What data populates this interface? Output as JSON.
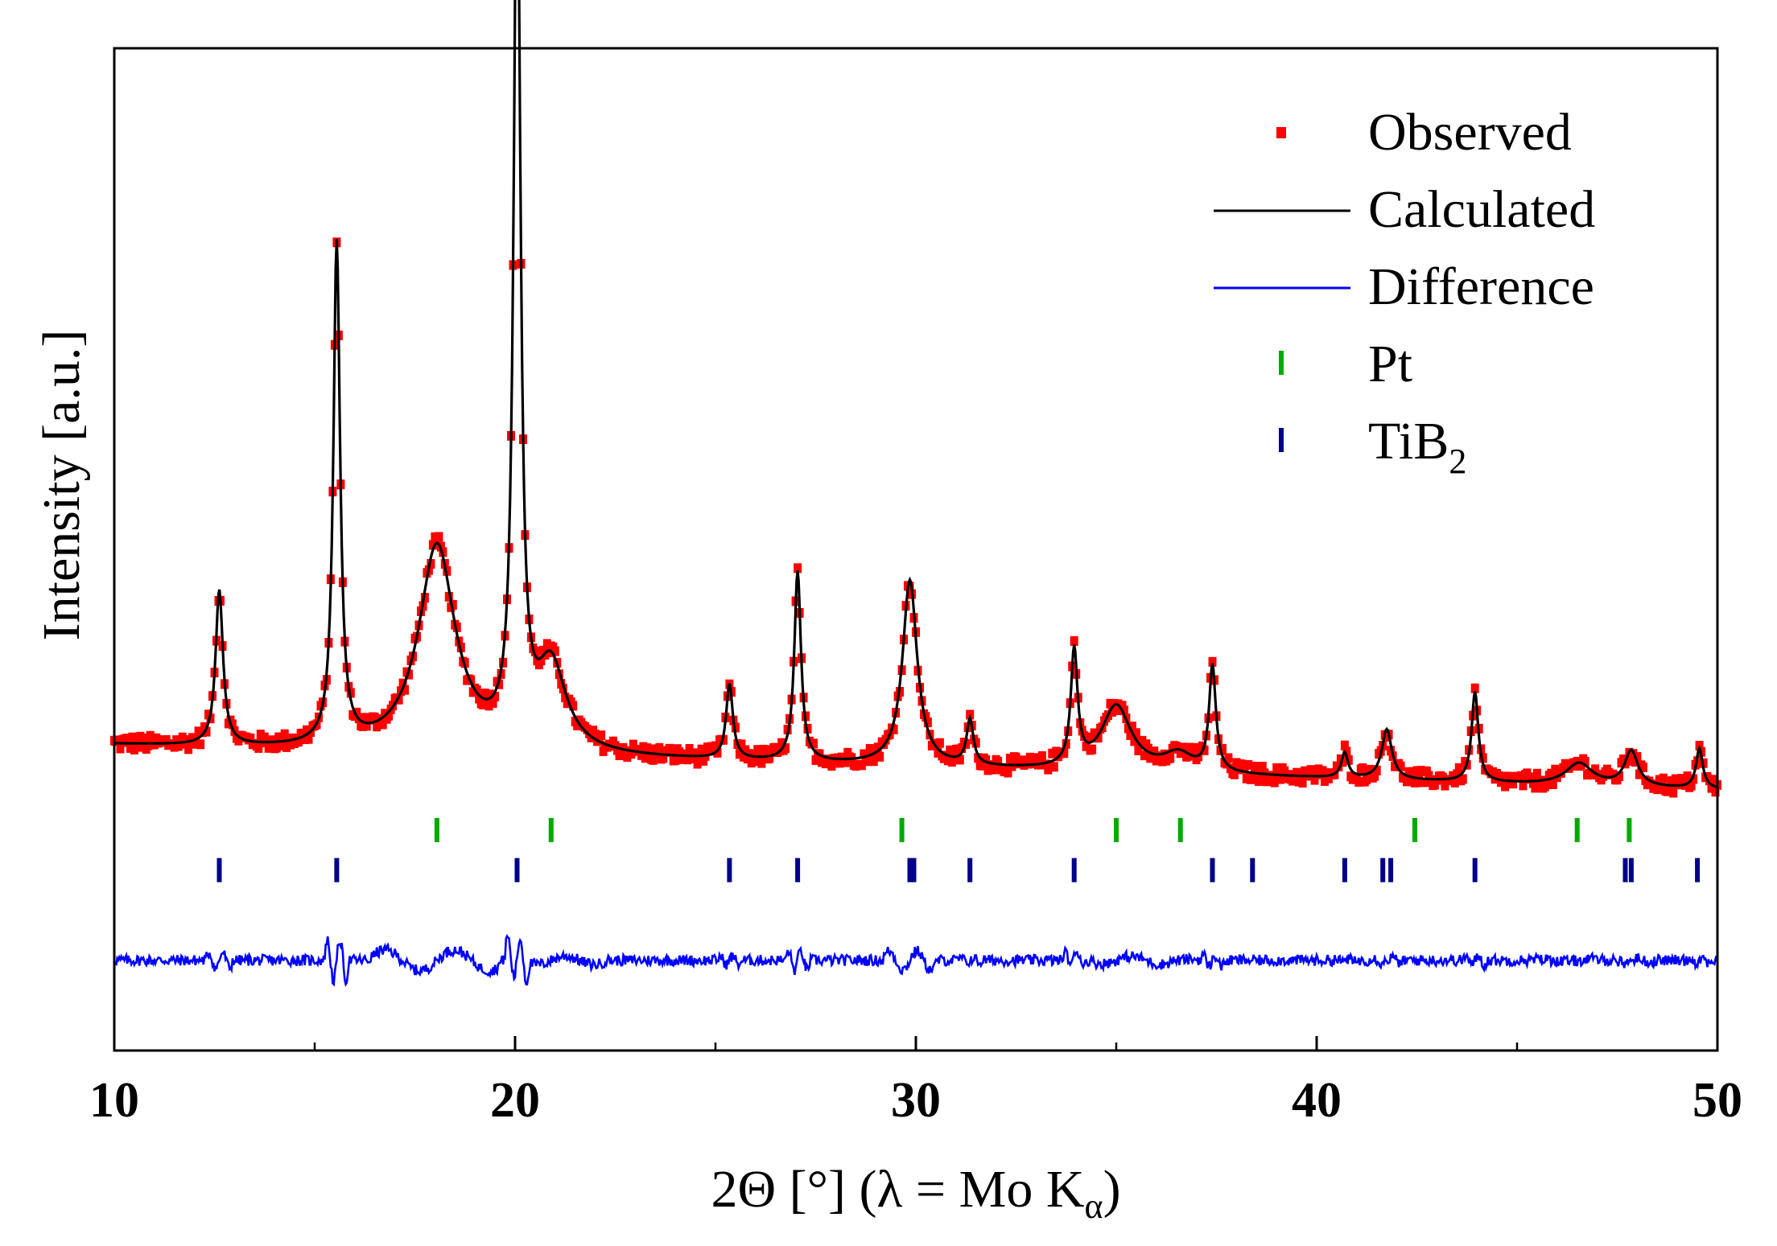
{
  "chart_data": {
    "type": "line",
    "title": "",
    "xlabel": "2Θ [°] (λ = Mo Kα)",
    "xlabel_parts": {
      "main": "2Θ [°] (λ = Mo K",
      "sub": "α",
      "close": ")"
    },
    "ylabel": "Intensity [a.u.]",
    "xlim": [
      10,
      50
    ],
    "ylim": [
      0,
      100
    ],
    "grid": false,
    "legend_position": "top-right",
    "x_ticks": [
      10,
      20,
      30,
      40,
      50
    ],
    "x_tick_labels": [
      "10",
      "20",
      "30",
      "40",
      "50"
    ],
    "y_ticks_shown": false,
    "background": {
      "baseline": 30.5,
      "slope_per_deg": -0.112,
      "offset_at_10": 30.5
    },
    "peaks": [
      {
        "x": 12.62,
        "height": 15.5,
        "width": 0.11,
        "phase": "TiB2"
      },
      {
        "x": 15.55,
        "height": 50.0,
        "width": 0.1,
        "phase": "TiB2"
      },
      {
        "x": 18.05,
        "height": 20.5,
        "width": 0.55,
        "phase": "Pt"
      },
      {
        "x": 20.05,
        "height": 91.5,
        "width": 0.1,
        "phase": "TiB2"
      },
      {
        "x": 20.9,
        "height": 8.5,
        "width": 0.45,
        "phase": "Pt"
      },
      {
        "x": 25.35,
        "height": 7.5,
        "width": 0.1,
        "phase": "TiB2"
      },
      {
        "x": 27.05,
        "height": 19.0,
        "width": 0.1,
        "phase": "TiB2"
      },
      {
        "x": 29.85,
        "height": 18.5,
        "width": 0.22,
        "phase": "TiB2/Pt"
      },
      {
        "x": 31.35,
        "height": 4.5,
        "width": 0.1,
        "phase": "TiB2"
      },
      {
        "x": 33.95,
        "height": 11.5,
        "width": 0.1,
        "phase": "TiB2"
      },
      {
        "x": 35.0,
        "height": 6.5,
        "width": 0.45,
        "phase": "Pt"
      },
      {
        "x": 36.55,
        "height": 1.8,
        "width": 0.45,
        "phase": "Pt"
      },
      {
        "x": 37.4,
        "height": 10.5,
        "width": 0.1,
        "phase": "TiB2"
      },
      {
        "x": 40.7,
        "height": 2.5,
        "width": 0.1,
        "phase": "TiB2"
      },
      {
        "x": 41.75,
        "height": 5.0,
        "width": 0.15,
        "phase": "TiB2"
      },
      {
        "x": 43.95,
        "height": 9.0,
        "width": 0.1,
        "phase": "TiB2"
      },
      {
        "x": 46.55,
        "height": 2.2,
        "width": 0.4,
        "phase": "Pt"
      },
      {
        "x": 47.85,
        "height": 3.5,
        "width": 0.2,
        "phase": "Pt/TiB2"
      },
      {
        "x": 49.55,
        "height": 4.0,
        "width": 0.1,
        "phase": "TiB2"
      }
    ],
    "series": [
      {
        "name": "Observed",
        "style": "square-markers",
        "color": "#ff0000"
      },
      {
        "name": "Calculated",
        "style": "line",
        "color": "#000000"
      },
      {
        "name": "Difference",
        "style": "line",
        "color": "#0000ff",
        "baseline": 9.0
      },
      {
        "name": "Pt",
        "style": "tick-marks",
        "color": "#00aa00",
        "level": 22.0,
        "positions": [
          18.05,
          20.9,
          29.65,
          35.0,
          36.6,
          42.45,
          46.5,
          47.8
        ]
      },
      {
        "name": "TiB2",
        "style": "tick-marks",
        "color": "#00008b",
        "level": 18.0,
        "positions": [
          12.62,
          15.55,
          20.05,
          25.35,
          27.05,
          29.85,
          29.95,
          31.35,
          33.95,
          37.4,
          38.4,
          40.7,
          41.65,
          41.85,
          43.95,
          47.7,
          47.85,
          49.5
        ]
      }
    ],
    "legend": [
      {
        "label": "Observed",
        "sub": ""
      },
      {
        "label": "Calculated",
        "sub": ""
      },
      {
        "label": "Difference",
        "sub": ""
      },
      {
        "label": "Pt",
        "sub": ""
      },
      {
        "label": "TiB",
        "sub": "2"
      }
    ]
  }
}
